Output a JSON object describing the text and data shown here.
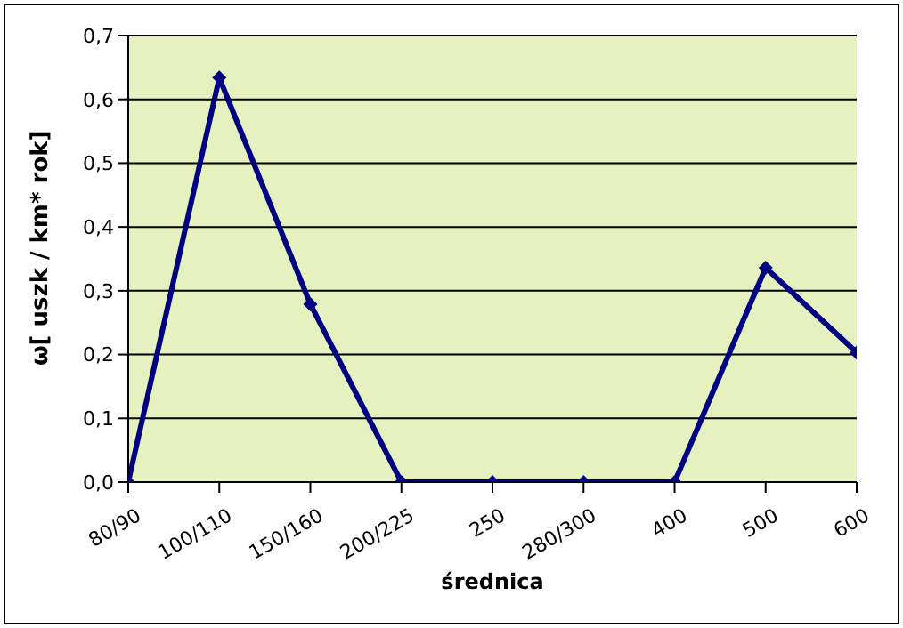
{
  "chart_data": {
    "type": "line",
    "xlabel": "średnica",
    "ylabel": "ω[ uszk / km* rok]",
    "categories": [
      "80/90",
      "100/110",
      "150/160",
      "200/225",
      "250",
      "280/300",
      "400",
      "500",
      "600"
    ],
    "series": [
      {
        "color": "#000080",
        "values": [
          0,
          0.634,
          0.279,
          0,
          0,
          0,
          0,
          0.336,
          0.203
        ]
      }
    ],
    "ylim": [
      0,
      0.7
    ],
    "yticks": [
      {
        "value": 0,
        "label": "0,0"
      },
      {
        "value": 0.1,
        "label": "0,1"
      },
      {
        "value": 0.2,
        "label": "0,2"
      },
      {
        "value": 0.3,
        "label": "0,3"
      },
      {
        "value": 0.4,
        "label": "0,4"
      },
      {
        "value": 0.5,
        "label": "0,5"
      },
      {
        "value": 0.6,
        "label": "0,6"
      },
      {
        "value": 0.7,
        "label": "0,7"
      }
    ],
    "grid": "y",
    "marker": "diamond",
    "legend": false
  }
}
